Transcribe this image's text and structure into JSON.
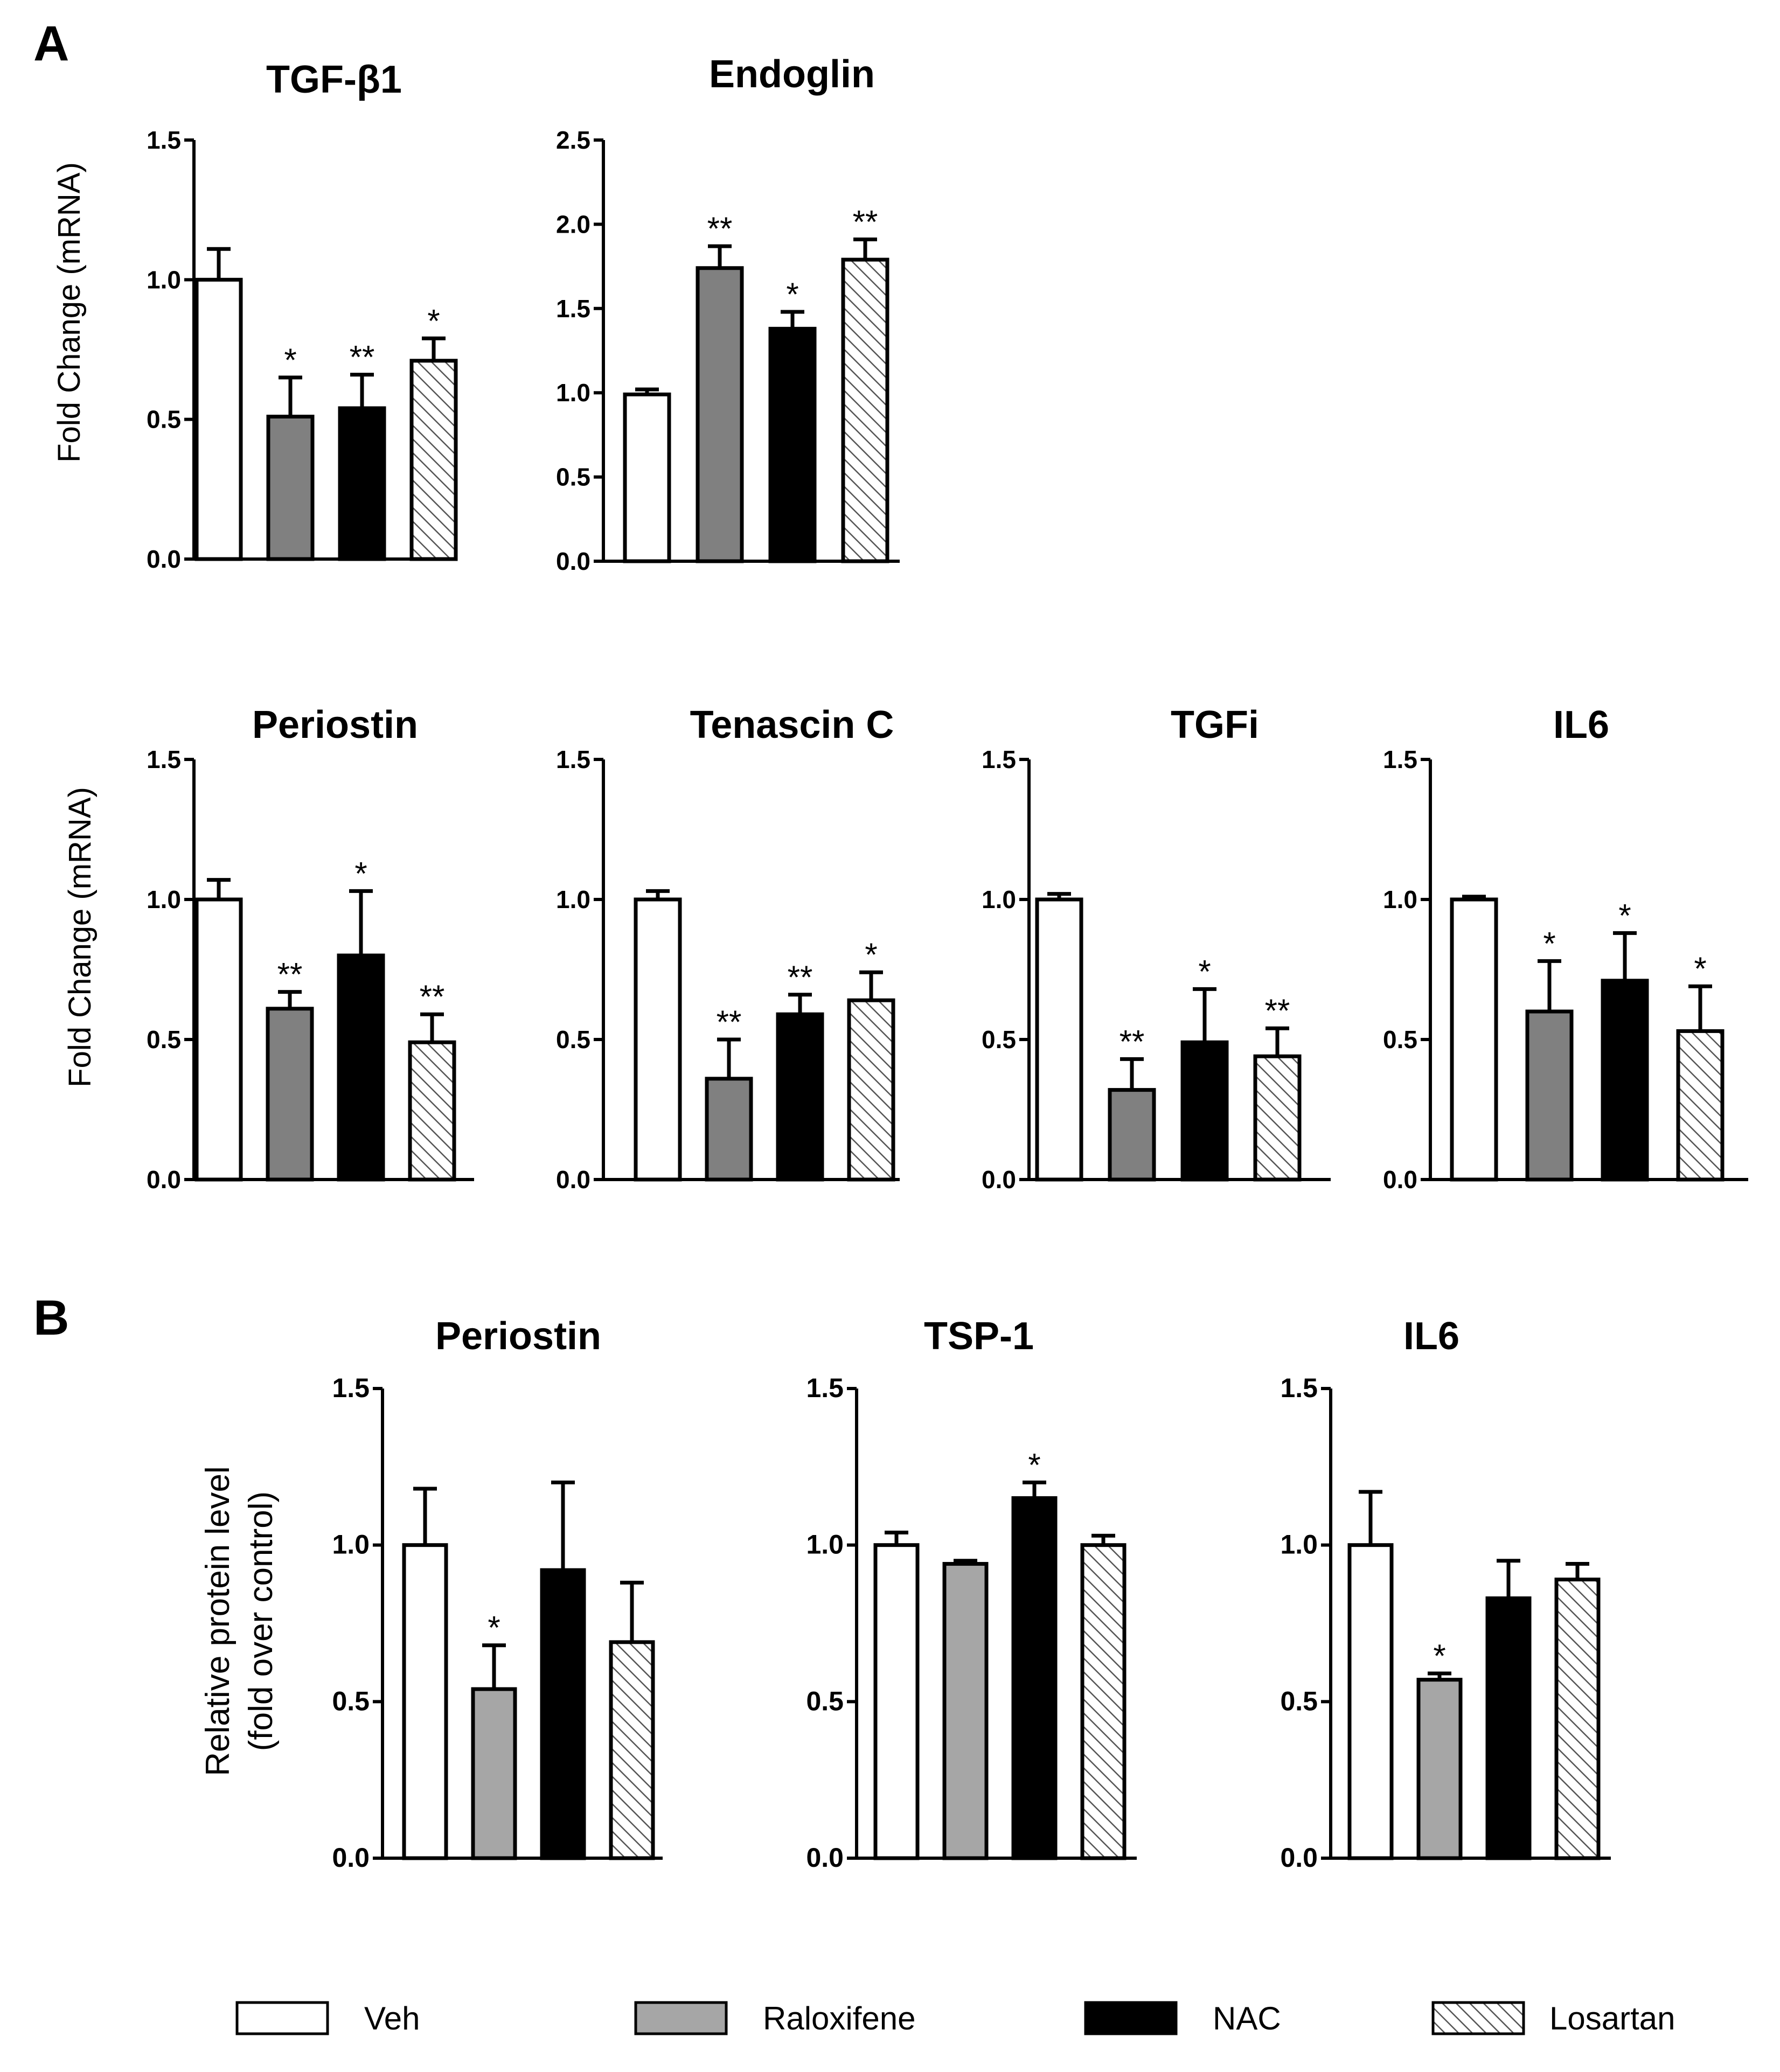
{
  "panel_labels": {
    "a": "A",
    "b": "B"
  },
  "y_labels": {
    "mrna": "Fold Change (mRNA)",
    "protein_line1": "Relative protein level",
    "protein_line2": "(fold over control)"
  },
  "legend": [
    {
      "label": "Veh",
      "color": "#ffffff",
      "pattern": "none"
    },
    {
      "label": "Raloxifene",
      "color": "#a6a6a6",
      "pattern": "none"
    },
    {
      "label": "NAC",
      "color": "#000000",
      "pattern": "none"
    },
    {
      "label": "Losartan",
      "color": "#ffffff",
      "pattern": "hatch"
    }
  ],
  "colors": {
    "veh": "#ffffff",
    "raloxifene_mrna": "#808080",
    "raloxifene_protein": "#a6a6a6",
    "nac": "#000000",
    "losartan": "hatch"
  },
  "chart_data": [
    {
      "type": "bar",
      "panel": "A",
      "title": "TGF-β1",
      "ylabel": "Fold Change (mRNA)",
      "ylim": [
        0,
        1.5
      ],
      "yticks": [
        "0.0",
        "0.5",
        "1.0",
        "1.5"
      ],
      "categories": [
        "Veh",
        "Raloxifene",
        "NAC",
        "Losartan"
      ],
      "values": [
        1.0,
        0.51,
        0.54,
        0.71
      ],
      "errors": [
        0.11,
        0.14,
        0.12,
        0.08
      ],
      "annotations": [
        "",
        "*",
        "**",
        "*"
      ]
    },
    {
      "type": "bar",
      "panel": "A",
      "title": "Endoglin",
      "ylabel": "",
      "ylim": [
        0,
        2.5
      ],
      "yticks": [
        "0.0",
        "0.5",
        "1.0",
        "1.5",
        "2.0",
        "2.5"
      ],
      "categories": [
        "Veh",
        "Raloxifene",
        "NAC",
        "Losartan"
      ],
      "values": [
        0.99,
        1.74,
        1.38,
        1.79
      ],
      "errors": [
        0.03,
        0.13,
        0.1,
        0.12
      ],
      "annotations": [
        "",
        "**",
        "*",
        "**"
      ]
    },
    {
      "type": "bar",
      "panel": "A",
      "title": "Periostin",
      "ylabel": "Fold Change (mRNA)",
      "ylim": [
        0,
        1.5
      ],
      "yticks": [
        "0.0",
        "0.5",
        "1.0",
        "1.5"
      ],
      "categories": [
        "Veh",
        "Raloxifene",
        "NAC",
        "Losartan"
      ],
      "values": [
        1.0,
        0.61,
        0.8,
        0.49
      ],
      "errors": [
        0.07,
        0.06,
        0.23,
        0.1
      ],
      "annotations": [
        "",
        "**",
        "*",
        "**"
      ]
    },
    {
      "type": "bar",
      "panel": "A",
      "title": "Tenascin C",
      "ylabel": "",
      "ylim": [
        0,
        1.5
      ],
      "yticks": [
        "0.0",
        "0.5",
        "1.0",
        "1.5"
      ],
      "categories": [
        "Veh",
        "Raloxifene",
        "NAC",
        "Losartan"
      ],
      "values": [
        1.0,
        0.36,
        0.59,
        0.64
      ],
      "errors": [
        0.03,
        0.14,
        0.07,
        0.1
      ],
      "annotations": [
        "",
        "**",
        "**",
        "*"
      ]
    },
    {
      "type": "bar",
      "panel": "A",
      "title": "TGFi",
      "ylabel": "",
      "ylim": [
        0,
        1.5
      ],
      "yticks": [
        "0.0",
        "0.5",
        "1.0",
        "1.5"
      ],
      "categories": [
        "Veh",
        "Raloxifene",
        "NAC",
        "Losartan"
      ],
      "values": [
        1.0,
        0.32,
        0.49,
        0.44
      ],
      "errors": [
        0.02,
        0.11,
        0.19,
        0.1
      ],
      "annotations": [
        "",
        "**",
        "*",
        "**"
      ]
    },
    {
      "type": "bar",
      "panel": "A",
      "title": "IL6",
      "ylabel": "",
      "ylim": [
        0,
        1.5
      ],
      "yticks": [
        "0.0",
        "0.5",
        "1.0",
        "1.5"
      ],
      "categories": [
        "Veh",
        "Raloxifene",
        "NAC",
        "Losartan"
      ],
      "values": [
        1.0,
        0.6,
        0.71,
        0.53
      ],
      "errors": [
        0.01,
        0.18,
        0.17,
        0.16
      ],
      "annotations": [
        "",
        "*",
        "*",
        "*"
      ]
    },
    {
      "type": "bar",
      "panel": "B",
      "title": "Periostin",
      "ylabel": "Relative protein level (fold over control)",
      "ylim": [
        0,
        1.5
      ],
      "yticks": [
        "0.0",
        "0.5",
        "1.0",
        "1.5"
      ],
      "categories": [
        "Veh",
        "Raloxifene",
        "NAC",
        "Losartan"
      ],
      "values": [
        1.0,
        0.54,
        0.92,
        0.69
      ],
      "errors": [
        0.18,
        0.14,
        0.28,
        0.19
      ],
      "annotations": [
        "",
        "*",
        "",
        ""
      ]
    },
    {
      "type": "bar",
      "panel": "B",
      "title": "TSP-1",
      "ylabel": "",
      "ylim": [
        0,
        1.5
      ],
      "yticks": [
        "0.0",
        "0.5",
        "1.0",
        "1.5"
      ],
      "categories": [
        "Veh",
        "Raloxifene",
        "NAC",
        "Losartan"
      ],
      "values": [
        1.0,
        0.94,
        1.15,
        1.0
      ],
      "errors": [
        0.04,
        0.01,
        0.05,
        0.03
      ],
      "annotations": [
        "",
        "",
        "*",
        ""
      ]
    },
    {
      "type": "bar",
      "panel": "B",
      "title": "IL6",
      "ylabel": "",
      "ylim": [
        0,
        1.5
      ],
      "yticks": [
        "0.0",
        "0.5",
        "1.0",
        "1.5"
      ],
      "categories": [
        "Veh",
        "Raloxifene",
        "NAC",
        "Losartan"
      ],
      "values": [
        1.0,
        0.57,
        0.83,
        0.89
      ],
      "errors": [
        0.17,
        0.02,
        0.12,
        0.05
      ],
      "annotations": [
        "",
        "*",
        "",
        ""
      ]
    }
  ]
}
